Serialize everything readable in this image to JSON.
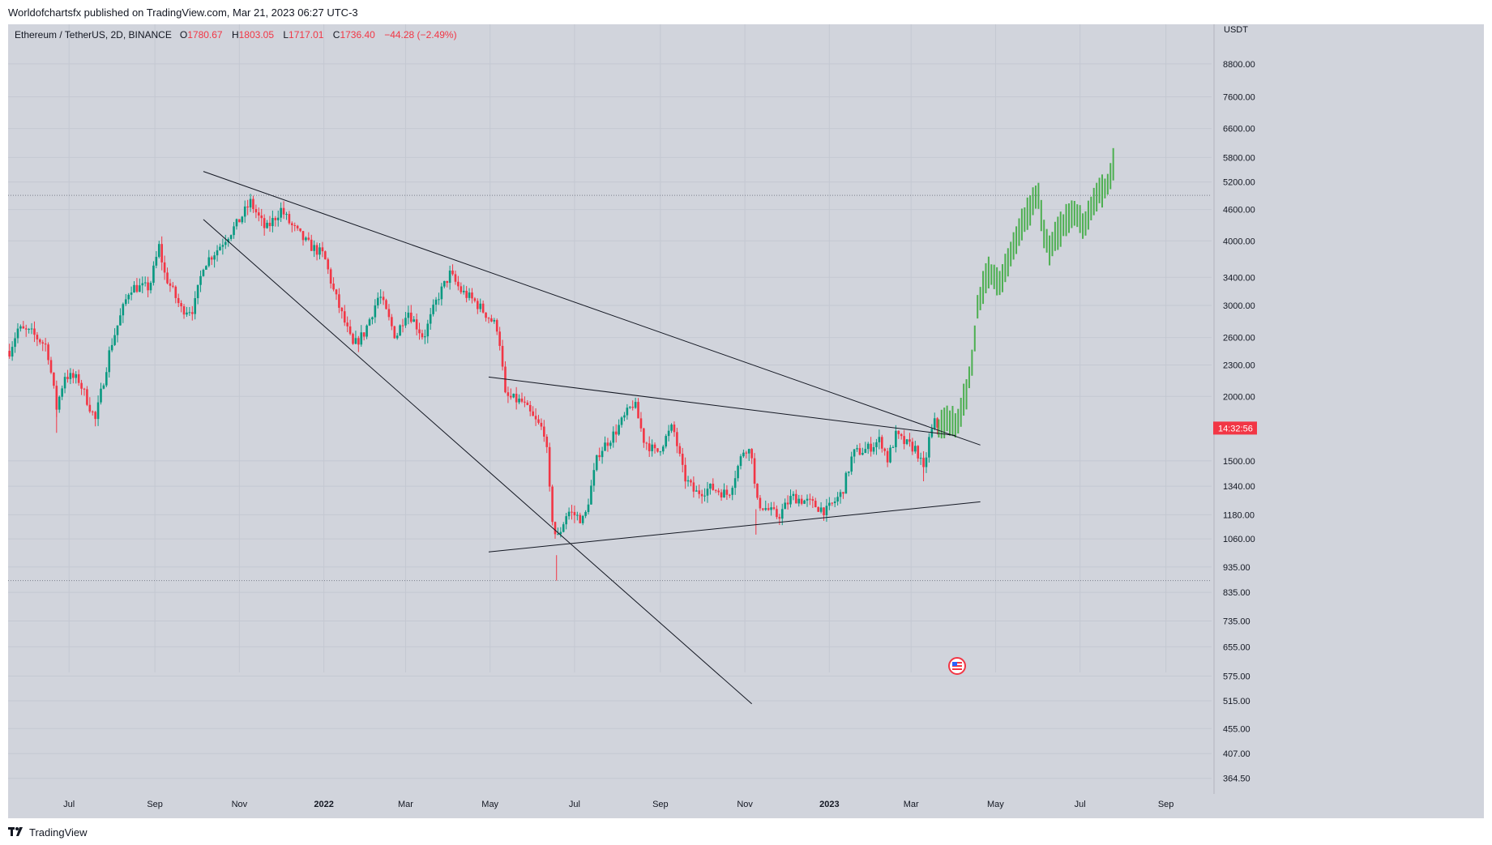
{
  "header": {
    "publish_line": "Worldofchartsfx published on TradingView.com, Mar 21, 2023 06:27 UTC-3"
  },
  "symbol": {
    "name": "Ethereum / TetherUS, 2D, BINANCE",
    "open_label": "O",
    "open": "1780.67",
    "high_label": "H",
    "high": "1803.05",
    "low_label": "L",
    "low": "1717.01",
    "close_label": "C",
    "close": "1736.40",
    "change": "−44.28 (−2.49%)"
  },
  "footer": {
    "brand": "TradingView"
  },
  "colors": {
    "background": "#d1d4dc",
    "grid": "#c4c8d2",
    "up": "#089981",
    "down": "#f23645",
    "projection": "#4caf50",
    "trendline": "#131722",
    "price_tag": "#f23645"
  },
  "chart_data": {
    "type": "candlestick",
    "scale": "log",
    "currency": "USDT",
    "title": "Ethereum / TetherUS, 2D, BINANCE",
    "ylim": [
      340,
      10500
    ],
    "y_ticks": [
      "8800.00",
      "7600.00",
      "6600.00",
      "5800.00",
      "5200.00",
      "4600.00",
      "4000.00",
      "3400.00",
      "3000.00",
      "2600.00",
      "2300.00",
      "2000.00",
      "1500.00",
      "1340.00",
      "1180.00",
      "1060.00",
      "935.00",
      "835.00",
      "735.00",
      "655.00",
      "575.00",
      "515.00",
      "455.00",
      "407.00",
      "364.50"
    ],
    "x_ticks": [
      {
        "label": "Jul",
        "date": "2021-07-01",
        "bold": false
      },
      {
        "label": "Sep",
        "date": "2021-09-01",
        "bold": false
      },
      {
        "label": "Nov",
        "date": "2021-11-01",
        "bold": false
      },
      {
        "label": "2022",
        "date": "2022-01-01",
        "bold": true
      },
      {
        "label": "Mar",
        "date": "2022-03-01",
        "bold": false
      },
      {
        "label": "May",
        "date": "2022-05-01",
        "bold": false
      },
      {
        "label": "Jul",
        "date": "2022-07-01",
        "bold": false
      },
      {
        "label": "Sep",
        "date": "2022-09-01",
        "bold": false
      },
      {
        "label": "Nov",
        "date": "2022-11-01",
        "bold": false
      },
      {
        "label": "2023",
        "date": "2023-01-01",
        "bold": true
      },
      {
        "label": "Mar",
        "date": "2023-03-01",
        "bold": false
      },
      {
        "label": "May",
        "date": "2023-05-01",
        "bold": false
      },
      {
        "label": "Jul",
        "date": "2023-07-01",
        "bold": false
      },
      {
        "label": "Sep",
        "date": "2023-09-01",
        "bold": false
      }
    ],
    "price_path": [
      [
        "2021-05-19",
        2450
      ],
      [
        "2021-05-25",
        2700
      ],
      [
        "2021-06-04",
        2650
      ],
      [
        "2021-06-15",
        2500
      ],
      [
        "2021-06-22",
        1900
      ],
      [
        "2021-06-28",
        2200
      ],
      [
        "2021-07-08",
        2150
      ],
      [
        "2021-07-20",
        1800
      ],
      [
        "2021-07-31",
        2500
      ],
      [
        "2021-08-14",
        3250
      ],
      [
        "2021-08-28",
        3250
      ],
      [
        "2021-09-04",
        3900
      ],
      [
        "2021-09-08",
        3450
      ],
      [
        "2021-09-20",
        2950
      ],
      [
        "2021-09-29",
        2950
      ],
      [
        "2021-10-06",
        3600
      ],
      [
        "2021-10-16",
        3850
      ],
      [
        "2021-10-22",
        4050
      ],
      [
        "2021-10-30",
        4300
      ],
      [
        "2021-11-09",
        4750
      ],
      [
        "2021-11-20",
        4200
      ],
      [
        "2021-12-01",
        4600
      ],
      [
        "2021-12-08",
        4300
      ],
      [
        "2021-12-20",
        3950
      ],
      [
        "2022-01-01",
        3750
      ],
      [
        "2022-01-08",
        3200
      ],
      [
        "2022-01-22",
        2500
      ],
      [
        "2022-01-30",
        2650
      ],
      [
        "2022-02-10",
        3150
      ],
      [
        "2022-02-22",
        2600
      ],
      [
        "2022-03-02",
        2950
      ],
      [
        "2022-03-14",
        2600
      ],
      [
        "2022-03-24",
        3100
      ],
      [
        "2022-04-02",
        3450
      ],
      [
        "2022-04-10",
        3200
      ],
      [
        "2022-04-20",
        3050
      ],
      [
        "2022-04-30",
        2850
      ],
      [
        "2022-05-07",
        2700
      ],
      [
        "2022-05-12",
        2000
      ],
      [
        "2022-05-24",
        1950
      ],
      [
        "2022-06-02",
        1800
      ],
      [
        "2022-06-10",
        1700
      ],
      [
        "2022-06-14",
        1200
      ],
      [
        "2022-06-18",
        1050
      ],
      [
        "2022-06-26",
        1200
      ],
      [
        "2022-07-08",
        1150
      ],
      [
        "2022-07-18",
        1550
      ],
      [
        "2022-07-30",
        1700
      ],
      [
        "2022-08-13",
        1950
      ],
      [
        "2022-08-20",
        1650
      ],
      [
        "2022-08-29",
        1550
      ],
      [
        "2022-09-10",
        1750
      ],
      [
        "2022-09-18",
        1400
      ],
      [
        "2022-09-26",
        1300
      ],
      [
        "2022-10-08",
        1330
      ],
      [
        "2022-10-20",
        1290
      ],
      [
        "2022-11-01",
        1600
      ],
      [
        "2022-11-06",
        1550
      ],
      [
        "2022-11-09",
        1250
      ],
      [
        "2022-11-19",
        1200
      ],
      [
        "2022-11-25",
        1170
      ],
      [
        "2022-12-05",
        1280
      ],
      [
        "2022-12-16",
        1250
      ],
      [
        "2022-12-30",
        1200
      ],
      [
        "2023-01-10",
        1300
      ],
      [
        "2023-01-18",
        1550
      ],
      [
        "2023-01-28",
        1580
      ],
      [
        "2023-02-07",
        1650
      ],
      [
        "2023-02-12",
        1510
      ],
      [
        "2023-02-18",
        1680
      ],
      [
        "2023-02-25",
        1620
      ],
      [
        "2023-03-05",
        1580
      ],
      [
        "2023-03-10",
        1430
      ],
      [
        "2023-03-14",
        1650
      ],
      [
        "2023-03-18",
        1780
      ],
      [
        "2023-03-21",
        1736
      ]
    ],
    "projection_path": [
      [
        "2023-03-21",
        1736
      ],
      [
        "2023-03-27",
        1800
      ],
      [
        "2023-04-03",
        1760
      ],
      [
        "2023-04-10",
        2050
      ],
      [
        "2023-04-14",
        2300
      ],
      [
        "2023-04-18",
        3000
      ],
      [
        "2023-04-26",
        3500
      ],
      [
        "2023-05-04",
        3300
      ],
      [
        "2023-05-10",
        3600
      ],
      [
        "2023-05-18",
        4250
      ],
      [
        "2023-05-26",
        4650
      ],
      [
        "2023-06-01",
        4900
      ],
      [
        "2023-06-05",
        4200
      ],
      [
        "2023-06-09",
        3800
      ],
      [
        "2023-06-14",
        4100
      ],
      [
        "2023-06-22",
        4450
      ],
      [
        "2023-06-30",
        4500
      ],
      [
        "2023-07-04",
        4250
      ],
      [
        "2023-07-10",
        4650
      ],
      [
        "2023-07-16",
        5000
      ],
      [
        "2023-07-22",
        5150
      ],
      [
        "2023-07-26",
        5800
      ]
    ],
    "trendlines": [
      {
        "name": "upper-resistance",
        "from": [
          "2021-10-06",
          5450
        ],
        "to": [
          "2023-04-20",
          1610
        ]
      },
      {
        "name": "lower-wedge",
        "from": [
          "2021-10-06",
          4400
        ],
        "to": [
          "2022-11-06",
          508
        ]
      },
      {
        "name": "triangle-top",
        "from": [
          "2022-04-30",
          2180
        ],
        "to": [
          "2023-04-02",
          1680
        ]
      },
      {
        "name": "triangle-bottom",
        "from": [
          "2022-04-30",
          1000
        ],
        "to": [
          "2023-04-20",
          1250
        ]
      }
    ],
    "dotted_levels": [
      4900,
      880
    ],
    "last_price": {
      "value": 1736.4,
      "label": "14:32:56"
    }
  }
}
